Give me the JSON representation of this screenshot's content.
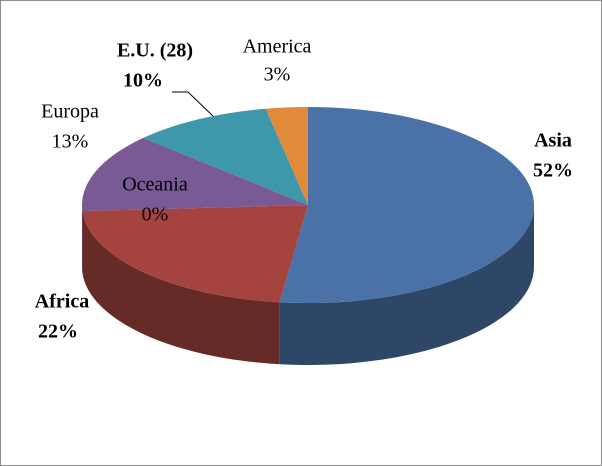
{
  "chart_data": {
    "type": "pie3d",
    "categories": [
      "Asia",
      "Africa",
      "Oceania",
      "Europa",
      "E.U. (28)",
      "America"
    ],
    "values": [
      52,
      22,
      0,
      13,
      10,
      3
    ],
    "value_labels": [
      "52%",
      "22%",
      "0%",
      "13%",
      "10%",
      "3%"
    ],
    "colors": [
      "#4a72a6",
      "#a5443f",
      "#8aa84a",
      "#7a5a94",
      "#3d98ac",
      "#e08a3a"
    ]
  }
}
